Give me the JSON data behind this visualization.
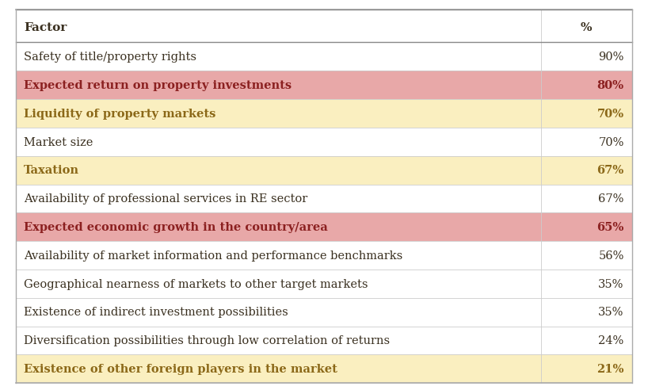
{
  "rows": [
    {
      "factor": "Safety of title/property rights",
      "pct": "90%",
      "bg": "#ffffff",
      "text_color": "#3a3020"
    },
    {
      "factor": "Expected return on property investments",
      "pct": "80%",
      "bg": "#e8a8a8",
      "text_color": "#8b2020"
    },
    {
      "factor": "Liquidity of property markets",
      "pct": "70%",
      "bg": "#faefc0",
      "text_color": "#8b6818"
    },
    {
      "factor": "Market size",
      "pct": "70%",
      "bg": "#ffffff",
      "text_color": "#3a3020"
    },
    {
      "factor": "Taxation",
      "pct": "67%",
      "bg": "#faefc0",
      "text_color": "#8b6818"
    },
    {
      "factor": "Availability of professional services in RE sector",
      "pct": "67%",
      "bg": "#ffffff",
      "text_color": "#3a3020"
    },
    {
      "factor": "Expected economic growth in the country/area",
      "pct": "65%",
      "bg": "#e8a8a8",
      "text_color": "#8b2020"
    },
    {
      "factor": "Availability of market information and performance benchmarks",
      "pct": "56%",
      "bg": "#ffffff",
      "text_color": "#3a3020"
    },
    {
      "factor": "Geographical nearness of markets to other target markets",
      "pct": "35%",
      "bg": "#ffffff",
      "text_color": "#3a3020"
    },
    {
      "factor": "Existence of indirect investment possibilities",
      "pct": "35%",
      "bg": "#ffffff",
      "text_color": "#3a3020"
    },
    {
      "factor": "Diversification possibilities through low correlation of returns",
      "pct": "24%",
      "bg": "#ffffff",
      "text_color": "#3a3020"
    },
    {
      "factor": "Existence of other foreign players in the market",
      "pct": "21%",
      "bg": "#faefc0",
      "text_color": "#8b6818"
    }
  ],
  "header_factor": "Factor",
  "header_pct": "%",
  "header_text_color": "#3a3020",
  "border_color": "#aaaaaa",
  "header_line_color": "#888888",
  "row_line_color": "#cccccc",
  "fig_bg": "#ffffff",
  "font_size": 10.5,
  "header_font_size": 11.0
}
